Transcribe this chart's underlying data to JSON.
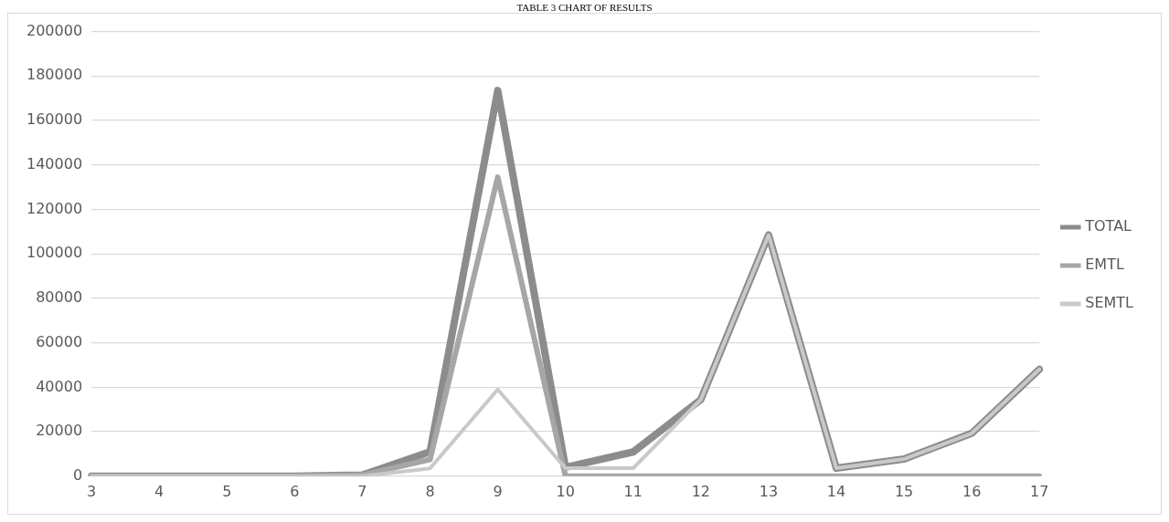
{
  "chart_data": {
    "type": "line",
    "title": "TABLE 3 CHART OF RESULTS",
    "categories": [
      "3",
      "4",
      "5",
      "6",
      "7",
      "8",
      "9",
      "10",
      "11",
      "12",
      "13",
      "14",
      "15",
      "16",
      "17"
    ],
    "series": [
      {
        "name": "TOTAL",
        "color": "#8c8c8c",
        "values": [
          0,
          0,
          0,
          0,
          500,
          11000,
          173500,
          4000,
          10900,
          34500,
          108500,
          3600,
          7700,
          19300,
          48100
        ]
      },
      {
        "name": "EMTL",
        "color": "#a6a6a6",
        "values": [
          0,
          0,
          0,
          0,
          500,
          7500,
          134500,
          0,
          0,
          0,
          0,
          0,
          0,
          0,
          0
        ]
      },
      {
        "name": "SEMTL",
        "color": "#c9c9c9",
        "values": [
          0,
          0,
          0,
          0,
          0,
          3500,
          39000,
          3600,
          3600,
          34500,
          108500,
          3600,
          7700,
          19300,
          48100
        ]
      }
    ],
    "ylim": [
      0,
      200000
    ],
    "yticks": [
      0,
      20000,
      40000,
      60000,
      80000,
      100000,
      120000,
      140000,
      160000,
      180000,
      200000
    ],
    "grid": "y",
    "legend": "right",
    "marker": "none",
    "line_style": "solid"
  }
}
